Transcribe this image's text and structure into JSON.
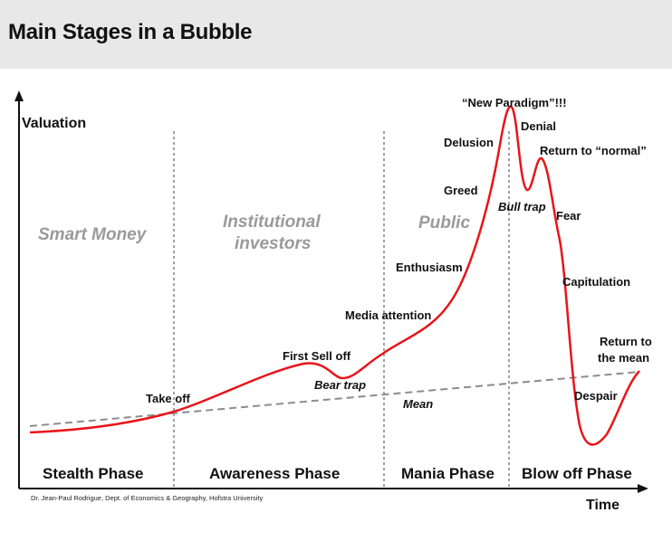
{
  "title": "Main Stages in a Bubble",
  "axes": {
    "y_label": "Valuation",
    "x_label": "Time"
  },
  "groups": {
    "smart_money": "Smart Money",
    "institutional_1": "Institutional",
    "institutional_2": "investors",
    "public": "Public"
  },
  "phases": {
    "stealth": "Stealth Phase",
    "awareness": "Awareness Phase",
    "mania": "Mania Phase",
    "blowoff": "Blow off Phase"
  },
  "annotations": {
    "take_off": "Take off",
    "first_sell_off": "First Sell off",
    "bear_trap": "Bear trap",
    "media_attention": "Media attention",
    "mean": "Mean",
    "enthusiasm": "Enthusiasm",
    "greed": "Greed",
    "delusion": "Delusion",
    "new_paradigm": "“New Paradigm”!!!",
    "denial": "Denial",
    "bull_trap": "Bull trap",
    "return_normal": "Return to “normal”",
    "fear": "Fear",
    "capitulation": "Capitulation",
    "return_mean_1": "Return to",
    "return_mean_2": "the mean",
    "despair": "Despair"
  },
  "credit": "Dr. Jean-Paul Rodrigue, Dept. of Economics & Geography, Hofstra University",
  "colors": {
    "curve": "#e8141a",
    "mean_line": "#8c8c8c",
    "axis": "#111111",
    "header": "#e8e8e8",
    "group_text": "#9a9a9a"
  }
}
